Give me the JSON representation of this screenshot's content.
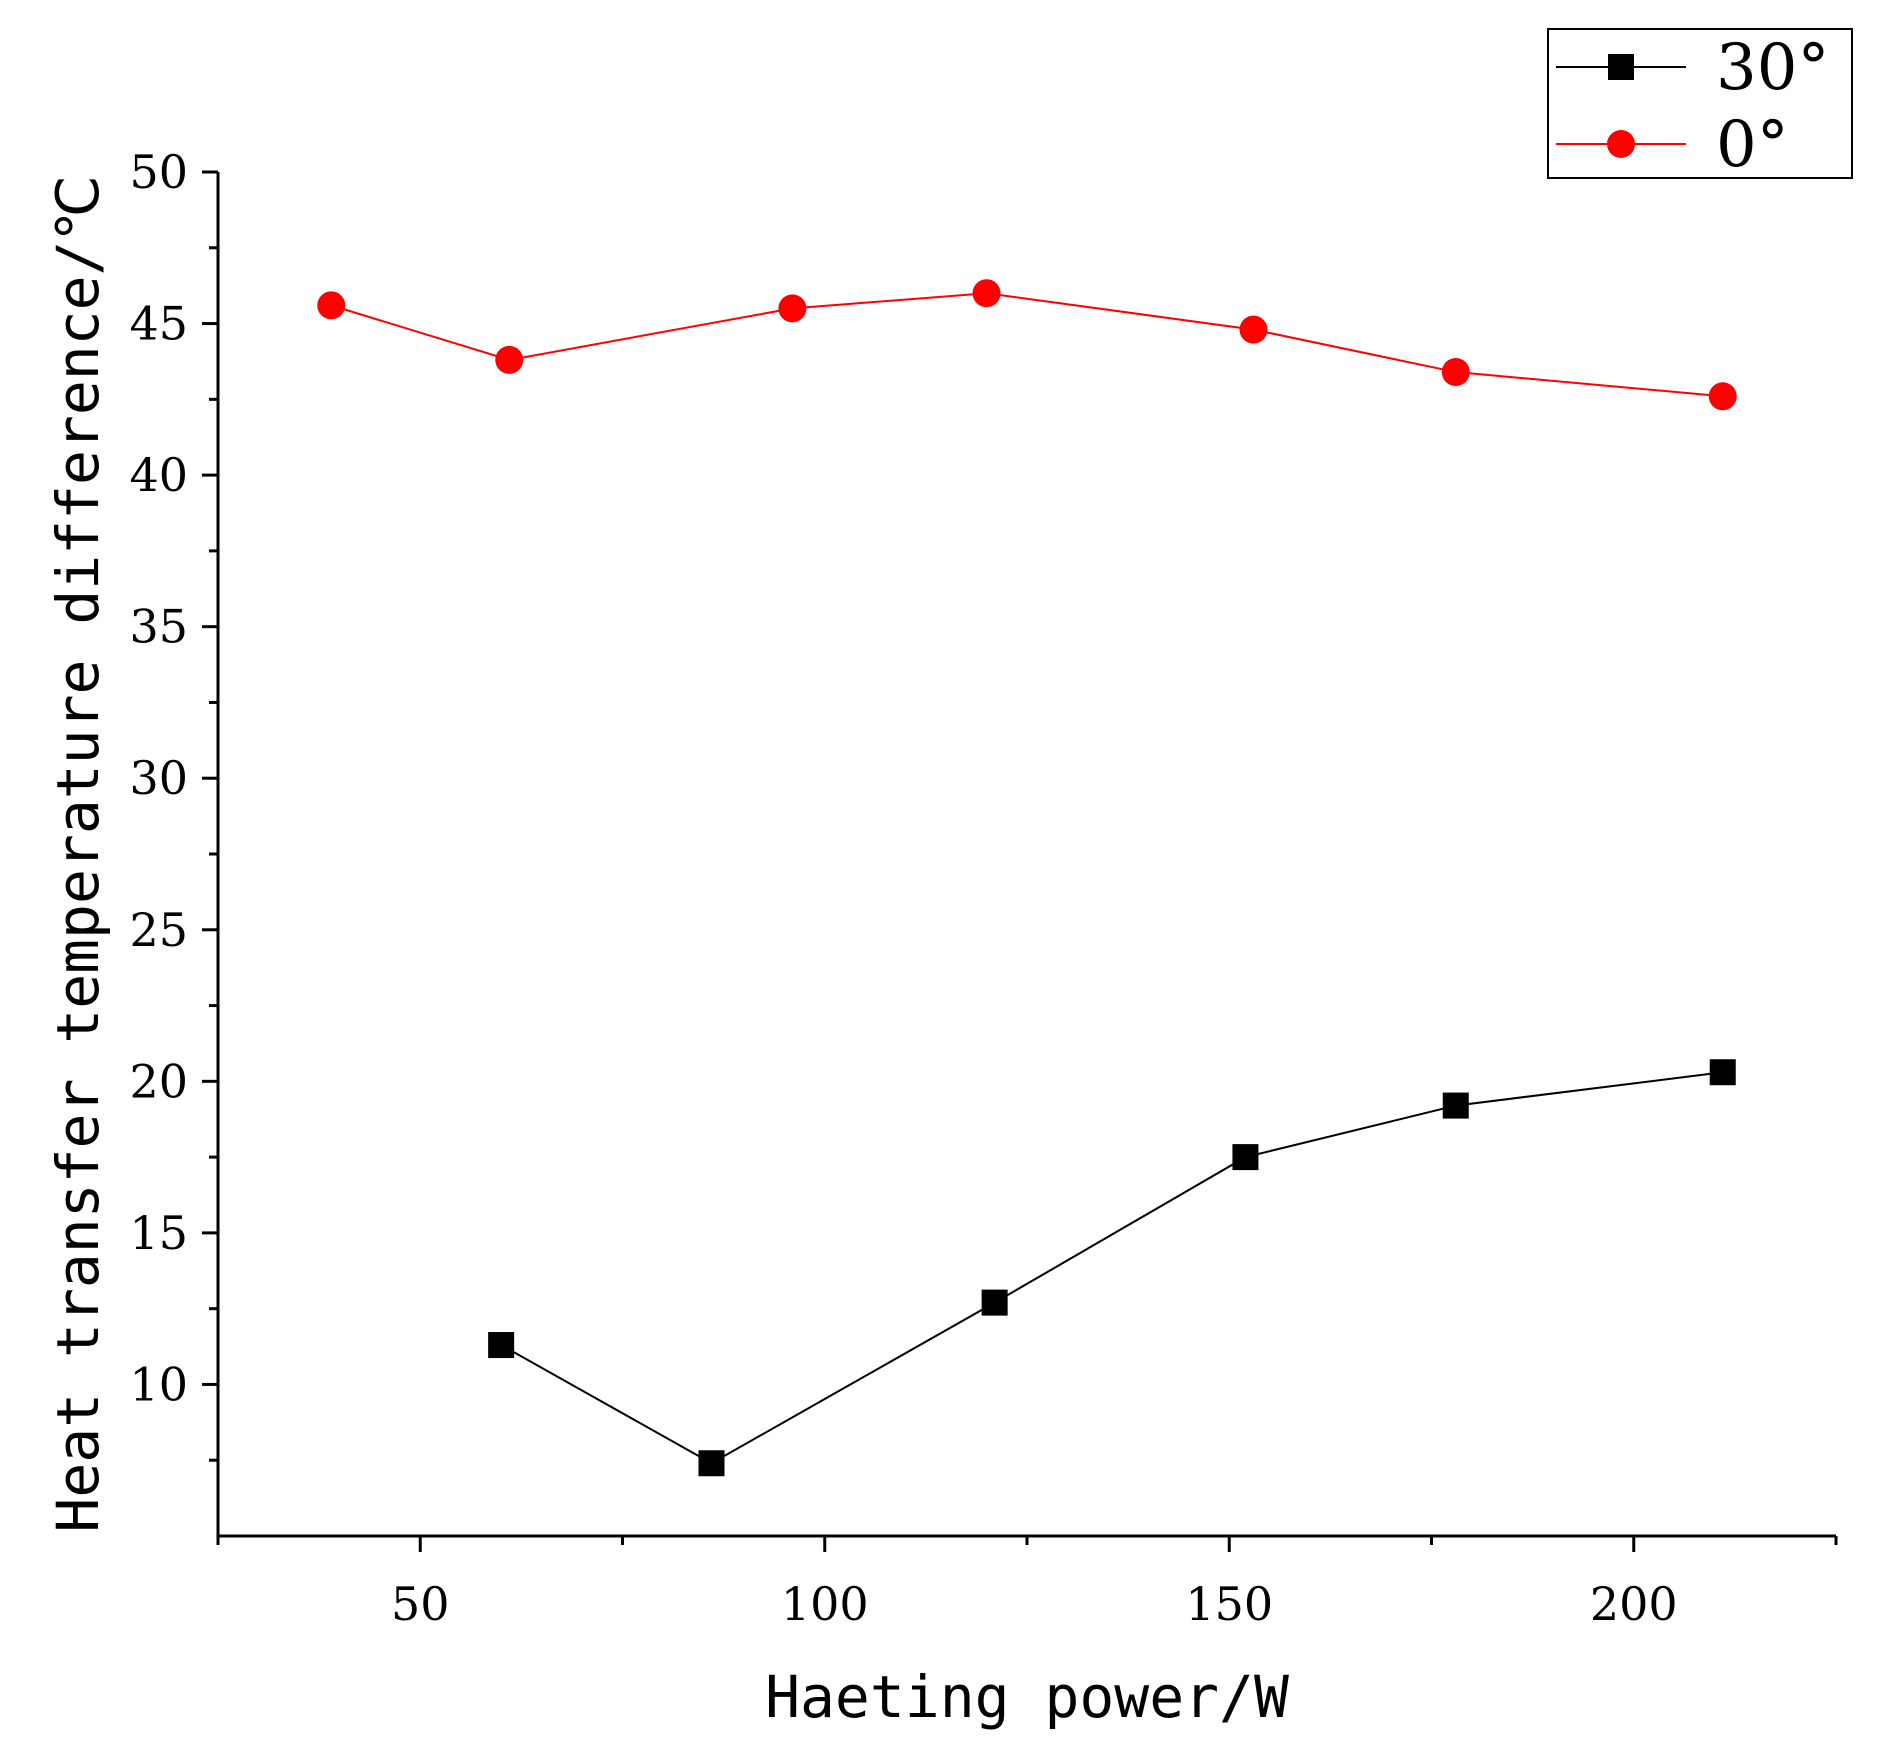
{
  "chart_data": {
    "type": "line",
    "title": "",
    "xlabel": "Haeting power/W",
    "ylabel": "Heat transfer temperature difference/℃",
    "xlim": [
      25,
      225
    ],
    "ylim": [
      5,
      50
    ],
    "x_ticks": [
      50,
      100,
      150,
      200
    ],
    "x_tick_labels": [
      "50",
      "100",
      "150",
      "200"
    ],
    "y_ticks": [
      10,
      15,
      20,
      25,
      30,
      35,
      40,
      45,
      50
    ],
    "y_tick_labels": [
      "10",
      "15",
      "20",
      "25",
      "30",
      "35",
      "40",
      "45",
      "50"
    ],
    "grid": false,
    "legend_position": "top-right",
    "series": [
      {
        "name": "30°",
        "color": "#000000",
        "marker": "square",
        "x": [
          60,
          86,
          121,
          152,
          178,
          211
        ],
        "y": [
          11.3,
          7.4,
          12.7,
          17.5,
          19.2,
          20.3
        ]
      },
      {
        "name": "0°",
        "color": "#ff0000",
        "marker": "circle",
        "x": [
          39,
          61,
          96,
          120,
          153,
          178,
          211
        ],
        "y": [
          45.6,
          43.8,
          45.5,
          46.0,
          44.8,
          43.4,
          42.6
        ]
      }
    ]
  }
}
